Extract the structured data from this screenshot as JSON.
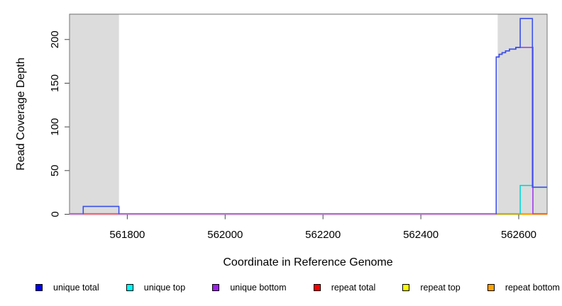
{
  "chart_data": {
    "type": "line",
    "title": "",
    "xlabel": "Coordinate in Reference Genome",
    "ylabel": "Read Coverage Depth",
    "xlim": [
      561682,
      562658
    ],
    "ylim": [
      0,
      229
    ],
    "x_ticks": [
      561800,
      562000,
      562200,
      562400,
      562600
    ],
    "x_tick_labels": [
      "561800",
      "562000",
      "562200",
      "562400",
      "562600"
    ],
    "y_ticks": [
      0,
      50,
      100,
      150,
      200
    ],
    "y_tick_labels": [
      "0",
      "50",
      "100",
      "150",
      "200"
    ],
    "grid": false,
    "legend_position": "bottom",
    "shaded_regions": [
      {
        "x1": 561683,
        "x2": 561783,
        "color": "#DCDCDC"
      },
      {
        "x1": 562557,
        "x2": 562657,
        "color": "#DCDCDC"
      }
    ],
    "series": [
      {
        "name": "repeat total",
        "color": "#FF0000",
        "paths": [
          [
            [
              561682,
              0
            ],
            [
              562658,
              0
            ]
          ]
        ]
      },
      {
        "name": "repeat top",
        "color": "#FFFF00",
        "paths": [
          [
            [
              561682,
              0
            ],
            [
              562658,
              0
            ]
          ]
        ]
      },
      {
        "name": "repeat bottom",
        "color": "#FFA500",
        "paths": [
          [
            [
              561682,
              0
            ],
            [
              562658,
              0
            ]
          ]
        ]
      },
      {
        "name": "unique top",
        "color": "#00D9D9",
        "paths": [
          [
            [
              562603,
              0
            ],
            [
              562603,
              33
            ],
            [
              562629,
              33
            ],
            [
              562629,
              31
            ],
            [
              562658,
              31
            ]
          ]
        ]
      },
      {
        "name": "unique bottom",
        "color": "#A33BEE",
        "paths": [
          [
            [
              562554,
              0
            ],
            [
              562554,
              180
            ],
            [
              562560,
              180
            ],
            [
              562560,
              183
            ],
            [
              562566,
              183
            ],
            [
              562566,
              185
            ],
            [
              562573,
              185
            ],
            [
              562573,
              187
            ],
            [
              562581,
              187
            ],
            [
              562581,
              189
            ],
            [
              562594,
              189
            ],
            [
              562594,
              191
            ],
            [
              562629,
              191
            ],
            [
              562629,
              0
            ]
          ]
        ]
      },
      {
        "name": "unique total",
        "color": "#3A4FE8",
        "paths": [
          [
            [
              561710,
              0
            ],
            [
              561710,
              9
            ],
            [
              561783,
              9
            ],
            [
              561783,
              0
            ]
          ],
          [
            [
              562554,
              0
            ],
            [
              562554,
              180
            ],
            [
              562560,
              180
            ],
            [
              562560,
              183
            ],
            [
              562566,
              183
            ],
            [
              562566,
              185
            ],
            [
              562573,
              185
            ],
            [
              562573,
              187
            ],
            [
              562581,
              187
            ],
            [
              562581,
              189
            ],
            [
              562594,
              189
            ],
            [
              562594,
              191
            ],
            [
              562603,
              191
            ],
            [
              562603,
              224
            ],
            [
              562628,
              224
            ],
            [
              562628,
              31
            ],
            [
              562658,
              31
            ]
          ]
        ]
      }
    ],
    "baseline_overlays": [
      {
        "x1": 561682,
        "x2": 562554,
        "color": "#F2B9CC",
        "dy": 1.5
      },
      {
        "x1": 561682,
        "x2": 561710,
        "color": "#7867EC",
        "dy": 0
      },
      {
        "x1": 561710,
        "x2": 561783,
        "color": "#E25B5B",
        "dy": 0
      },
      {
        "x1": 561783,
        "x2": 562554,
        "color": "#7867EC",
        "dy": 0
      },
      {
        "x1": 562554,
        "x2": 562603,
        "color": "#6FC46F",
        "dy": 0
      },
      {
        "x1": 562603,
        "x2": 562629,
        "color": "#FFA300",
        "dy": 0
      },
      {
        "x1": 562629,
        "x2": 562658,
        "color": "#D85878",
        "dy": 0
      }
    ],
    "legend": [
      {
        "label": "unique total",
        "color": "#0000EE"
      },
      {
        "label": "unique top",
        "color": "#00FFFF"
      },
      {
        "label": "unique bottom",
        "color": "#A020F0"
      },
      {
        "label": "repeat total",
        "color": "#FF0000"
      },
      {
        "label": "repeat top",
        "color": "#FFFF00"
      },
      {
        "label": "repeat bottom",
        "color": "#FFA500"
      }
    ]
  }
}
